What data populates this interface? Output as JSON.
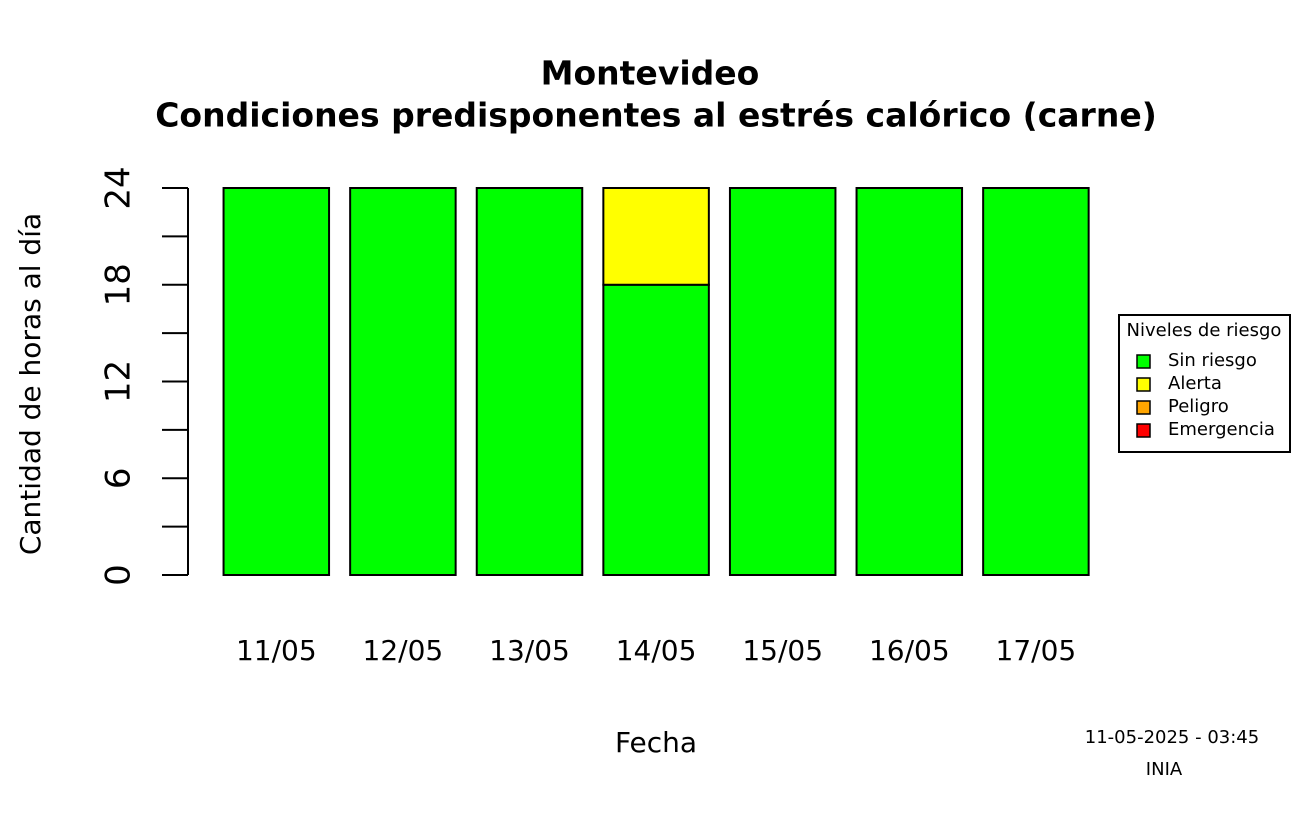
{
  "chart_data": {
    "type": "stacked_bar",
    "title": "Montevideo",
    "subtitle": "Condiciones predisponentes al estrés calórico (carne)",
    "y_label": "Cantidad de horas al día",
    "x_label": "Fecha",
    "categories": [
      "11/05",
      "12/05",
      "13/05",
      "14/05",
      "15/05",
      "16/05",
      "17/05"
    ],
    "series": [
      {
        "name": "Sin riesgo",
        "color": "#00ff00",
        "values": [
          24,
          24,
          24,
          18,
          24,
          24,
          24
        ]
      },
      {
        "name": "Alerta",
        "color": "#ffff00",
        "values": [
          0,
          0,
          0,
          6,
          0,
          0,
          0
        ]
      },
      {
        "name": "Peligro",
        "color": "#ffa500",
        "values": [
          0,
          0,
          0,
          0,
          0,
          0,
          0
        ]
      },
      {
        "name": "Emergencia",
        "color": "#ff0000",
        "values": [
          0,
          0,
          0,
          0,
          0,
          0,
          0
        ]
      }
    ],
    "ylim": [
      0,
      24
    ],
    "yticks": [
      0,
      6,
      12,
      18,
      24
    ],
    "yminor_ticks": [
      3,
      9,
      15,
      21
    ],
    "legend_title": "Niveles de riesgo",
    "legend_position": "right",
    "annotations": [
      "11-05-2025 - 03:45",
      "INIA"
    ]
  }
}
